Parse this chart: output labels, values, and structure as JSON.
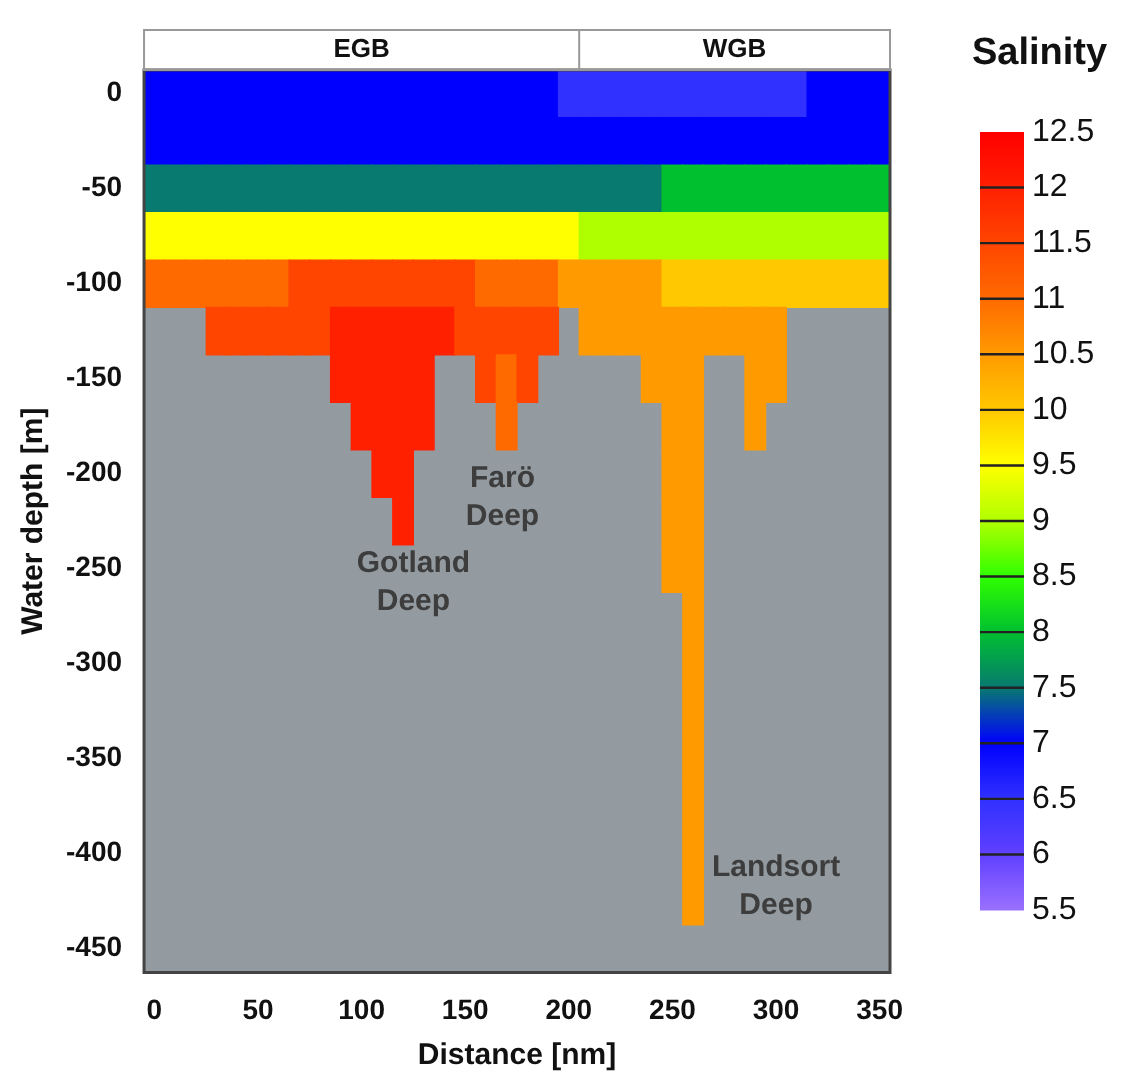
{
  "chart_data": {
    "type": "heatmap",
    "xlabel": "Distance [nm]",
    "ylabel": "Water depth [m]",
    "clabel": "Salinity",
    "categories": [
      "0",
      null,
      null,
      null,
      null,
      "50",
      null,
      null,
      null,
      null,
      "100",
      null,
      null,
      null,
      null,
      "150",
      null,
      null,
      null,
      null,
      "200",
      null,
      null,
      null,
      null,
      "250",
      null,
      null,
      null,
      null,
      "300",
      null,
      null,
      null,
      null,
      "350"
    ],
    "y_categories": [
      "0",
      null,
      "-50",
      null,
      "-100",
      null,
      "-150",
      null,
      "-200",
      null,
      "-250",
      null,
      "-300",
      null,
      "-350",
      null,
      "-400",
      null,
      "-450"
    ],
    "cells": [
      [
        7,
        7,
        7,
        7,
        7,
        7,
        7,
        7,
        7,
        7,
        7,
        7,
        7,
        7,
        7,
        7,
        7,
        7,
        7,
        7,
        6.5,
        6.5,
        6.5,
        6.5,
        6.5,
        6.5,
        6.5,
        6.5,
        6.5,
        6.5,
        6.5,
        6.5,
        7,
        7,
        7,
        7
      ],
      [
        7,
        7,
        7,
        7,
        7,
        7,
        7,
        7,
        7,
        7,
        7,
        7,
        7,
        7,
        7,
        7,
        7,
        7,
        7,
        7,
        7,
        7,
        7,
        7,
        7,
        7,
        7,
        7,
        7,
        7,
        7,
        7,
        7,
        7,
        7,
        7
      ],
      [
        7.5,
        7.5,
        7.5,
        7.5,
        7.5,
        7.5,
        7.5,
        7.5,
        7.5,
        7.5,
        7.5,
        7.5,
        7.5,
        7.5,
        7.5,
        7.5,
        7.5,
        7.5,
        7.5,
        7.5,
        7.5,
        7.5,
        7.5,
        7.5,
        7.5,
        8,
        8,
        8,
        8,
        8,
        8,
        8,
        8,
        8,
        8,
        8
      ],
      [
        9.5,
        9.5,
        9.5,
        9.5,
        9.5,
        9.5,
        9.5,
        9.5,
        9.5,
        9.5,
        9.5,
        9.5,
        9.5,
        9.5,
        9.5,
        9.5,
        9.5,
        9.5,
        9.5,
        9.5,
        9.5,
        9,
        9,
        9,
        9,
        9,
        9,
        9,
        9,
        9,
        9,
        9,
        9,
        9,
        9,
        9
      ],
      [
        11,
        11,
        11,
        11,
        11,
        11,
        11,
        11.5,
        11.5,
        11.5,
        11.5,
        11.5,
        11.5,
        11.5,
        11.5,
        11.5,
        11,
        11,
        11,
        11,
        10.5,
        10.5,
        10.5,
        10.5,
        10.5,
        10,
        10,
        10,
        10,
        10,
        10,
        10,
        10,
        10,
        10,
        10
      ],
      [
        null,
        null,
        null,
        11.5,
        11.5,
        11.5,
        11.5,
        11.5,
        11.5,
        12,
        12,
        12,
        12,
        12,
        12,
        11.5,
        11.5,
        11.5,
        11.5,
        11.5,
        null,
        10.5,
        10.5,
        10.5,
        10.5,
        10.5,
        10.5,
        10.5,
        10.5,
        10.5,
        10.5,
        null,
        null,
        null,
        null,
        null
      ],
      [
        null,
        null,
        null,
        null,
        null,
        null,
        null,
        null,
        null,
        12,
        12,
        12,
        12,
        12,
        null,
        null,
        11.5,
        11,
        11.5,
        null,
        null,
        null,
        null,
        null,
        10.5,
        10.5,
        10.5,
        null,
        null,
        10.5,
        10.5,
        null,
        null,
        null,
        null,
        null
      ],
      [
        null,
        null,
        null,
        null,
        null,
        null,
        null,
        null,
        null,
        null,
        12,
        12,
        12,
        12,
        null,
        null,
        null,
        11,
        null,
        null,
        null,
        null,
        null,
        null,
        null,
        10.5,
        10.5,
        null,
        null,
        10.5,
        null,
        null,
        null,
        null,
        null,
        null
      ],
      [
        null,
        null,
        null,
        null,
        null,
        null,
        null,
        null,
        null,
        null,
        null,
        12,
        12,
        null,
        null,
        null,
        null,
        null,
        null,
        null,
        null,
        null,
        null,
        null,
        null,
        10.5,
        10.5,
        null,
        null,
        null,
        null,
        null,
        null,
        null,
        null,
        null
      ],
      [
        null,
        null,
        null,
        null,
        null,
        null,
        null,
        null,
        null,
        null,
        null,
        null,
        12,
        null,
        null,
        null,
        null,
        null,
        null,
        null,
        null,
        null,
        null,
        null,
        null,
        10.5,
        10.5,
        null,
        null,
        null,
        null,
        null,
        null,
        null,
        null,
        null
      ],
      [
        null,
        null,
        null,
        null,
        null,
        null,
        null,
        null,
        null,
        null,
        null,
        null,
        null,
        null,
        null,
        null,
        null,
        null,
        null,
        null,
        null,
        null,
        null,
        null,
        null,
        10.5,
        10.5,
        null,
        null,
        null,
        null,
        null,
        null,
        null,
        null,
        null
      ],
      [
        null,
        null,
        null,
        null,
        null,
        null,
        null,
        null,
        null,
        null,
        null,
        null,
        null,
        null,
        null,
        null,
        null,
        null,
        null,
        null,
        null,
        null,
        null,
        null,
        null,
        null,
        10.5,
        null,
        null,
        null,
        null,
        null,
        null,
        null,
        null,
        null
      ],
      [
        null,
        null,
        null,
        null,
        null,
        null,
        null,
        null,
        null,
        null,
        null,
        null,
        null,
        null,
        null,
        null,
        null,
        null,
        null,
        null,
        null,
        null,
        null,
        null,
        null,
        null,
        10.5,
        null,
        null,
        null,
        null,
        null,
        null,
        null,
        null,
        null
      ],
      [
        null,
        null,
        null,
        null,
        null,
        null,
        null,
        null,
        null,
        null,
        null,
        null,
        null,
        null,
        null,
        null,
        null,
        null,
        null,
        null,
        null,
        null,
        null,
        null,
        null,
        null,
        10.5,
        null,
        null,
        null,
        null,
        null,
        null,
        null,
        null,
        null
      ],
      [
        null,
        null,
        null,
        null,
        null,
        null,
        null,
        null,
        null,
        null,
        null,
        null,
        null,
        null,
        null,
        null,
        null,
        null,
        null,
        null,
        null,
        null,
        null,
        null,
        null,
        null,
        10.5,
        null,
        null,
        null,
        null,
        null,
        null,
        null,
        null,
        null
      ],
      [
        null,
        null,
        null,
        null,
        null,
        null,
        null,
        null,
        null,
        null,
        null,
        null,
        null,
        null,
        null,
        null,
        null,
        null,
        null,
        null,
        null,
        null,
        null,
        null,
        null,
        null,
        10.5,
        null,
        null,
        null,
        null,
        null,
        null,
        null,
        null,
        null
      ],
      [
        null,
        null,
        null,
        null,
        null,
        null,
        null,
        null,
        null,
        null,
        null,
        null,
        null,
        null,
        null,
        null,
        null,
        null,
        null,
        null,
        null,
        null,
        null,
        null,
        null,
        null,
        10.5,
        null,
        null,
        null,
        null,
        null,
        null,
        null,
        null,
        null
      ],
      [
        null,
        null,
        null,
        null,
        null,
        null,
        null,
        null,
        null,
        null,
        null,
        null,
        null,
        null,
        null,
        null,
        null,
        null,
        null,
        null,
        null,
        null,
        null,
        null,
        null,
        null,
        10.5,
        null,
        null,
        null,
        null,
        null,
        null,
        null,
        null,
        null
      ],
      [
        null,
        null,
        null,
        null,
        null,
        null,
        null,
        null,
        null,
        null,
        null,
        null,
        null,
        null,
        null,
        null,
        null,
        null,
        null,
        null,
        null,
        null,
        null,
        null,
        null,
        null,
        null,
        null,
        null,
        null,
        null,
        null,
        null,
        null,
        null,
        null
      ]
    ],
    "clim": [
      5.5,
      12.5
    ],
    "cticks": [
      5.5,
      6,
      6.5,
      7,
      7.5,
      8,
      8.5,
      9,
      9.5,
      10,
      10.5,
      11,
      11.5,
      12,
      12.5
    ],
    "annotations": [
      "EGB",
      "WGB",
      "Gotland Deep",
      "Farö Deep",
      "Landsort Deep"
    ]
  }
}
